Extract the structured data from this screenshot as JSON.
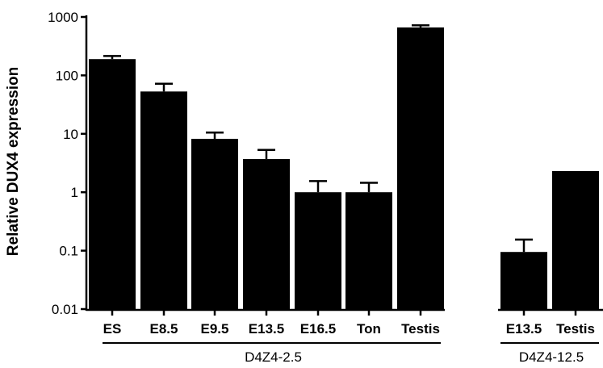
{
  "chart_data": {
    "type": "bar",
    "y_scale": "log",
    "ylabel": "Relative DUX4 expression",
    "ylim": [
      0.01,
      1000
    ],
    "y_ticks": [
      {
        "value": 0.01,
        "label": "0.01"
      },
      {
        "value": 0.1,
        "label": "0.1"
      },
      {
        "value": 1,
        "label": "1"
      },
      {
        "value": 10,
        "label": "10"
      },
      {
        "value": 100,
        "label": "100"
      },
      {
        "value": 1000,
        "label": "1000"
      }
    ],
    "bar_color": "#000000",
    "grid": false,
    "groups": [
      {
        "label": "D4Z4-2.5",
        "bars": [
          {
            "category": "ES",
            "value": 190,
            "error_upper": 215
          },
          {
            "category": "E8.5",
            "value": 53,
            "error_upper": 72
          },
          {
            "category": "E9.5",
            "value": 8.2,
            "error_upper": 10.5
          },
          {
            "category": "E13.5",
            "value": 3.7,
            "error_upper": 5.3
          },
          {
            "category": "E16.5",
            "value": 1.0,
            "error_upper": 1.55
          },
          {
            "category": "Ton",
            "value": 1.0,
            "error_upper": 1.45
          },
          {
            "category": "Testis",
            "value": 660,
            "error_upper": 720
          }
        ]
      },
      {
        "label": "D4Z4-12.5",
        "bars": [
          {
            "category": "E13.5",
            "value": 0.095,
            "error_upper": 0.155
          },
          {
            "category": "Testis",
            "value": 2.3,
            "error_upper": null
          }
        ]
      }
    ]
  }
}
